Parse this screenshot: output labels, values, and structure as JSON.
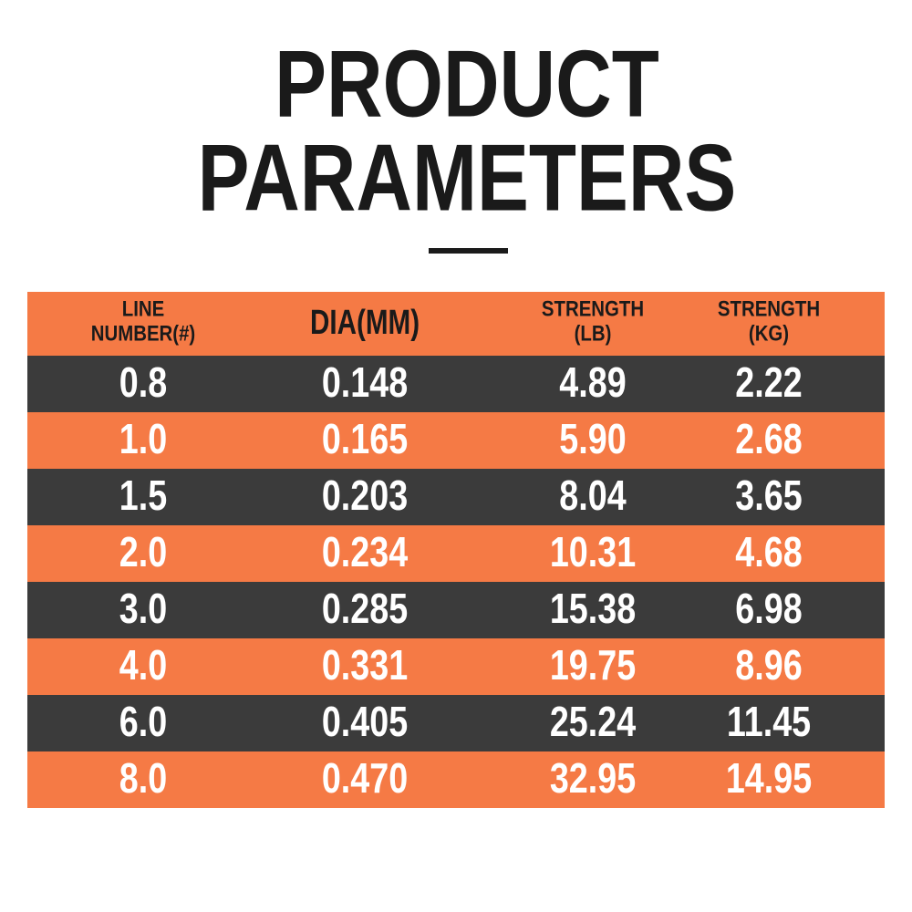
{
  "title": {
    "lines": [
      "PRODUCT",
      "PARAMETERS"
    ]
  },
  "table": {
    "headers": [
      [
        "LINE",
        "NUMBER(#)"
      ],
      [
        "DIA(MM)"
      ],
      [
        "STRENGTH",
        "(LB)"
      ],
      [
        "STRENGTH",
        "(KG)"
      ]
    ],
    "rows": [
      [
        "0.8",
        "0.148",
        "4.89",
        "2.22"
      ],
      [
        "1.0",
        "0.165",
        "5.90",
        "2.68"
      ],
      [
        "1.5",
        "0.203",
        "8.04",
        "3.65"
      ],
      [
        "2.0",
        "0.234",
        "10.31",
        "4.68"
      ],
      [
        "3.0",
        "0.285",
        "15.38",
        "6.98"
      ],
      [
        "4.0",
        "0.331",
        "19.75",
        "8.96"
      ],
      [
        "6.0",
        "0.405",
        "25.24",
        "11.45"
      ],
      [
        "8.0",
        "0.470",
        "32.95",
        "14.95"
      ]
    ]
  }
}
